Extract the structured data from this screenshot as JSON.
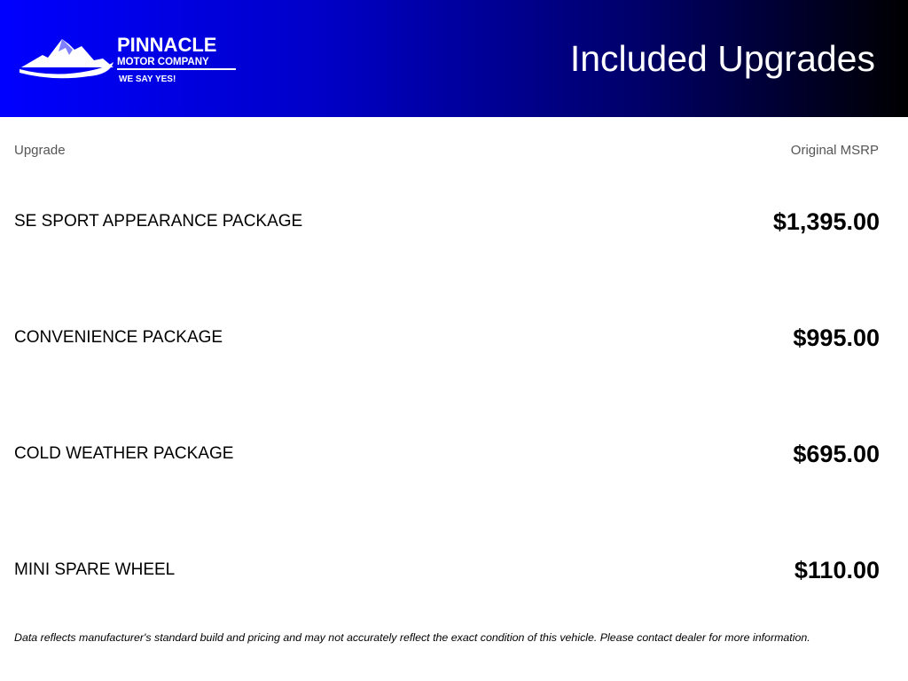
{
  "header": {
    "title": "Included Upgrades",
    "logo": {
      "line1": "PINNACLE",
      "line2": "MOTOR COMPANY",
      "tagline": "WE SAY YES!"
    },
    "gradient_colors": [
      "#0000ff",
      "#000000"
    ]
  },
  "table": {
    "columns": [
      "Upgrade",
      "Original MSRP"
    ],
    "rows": [
      {
        "name": "SE SPORT APPEARANCE PACKAGE",
        "price": "$1,395.00"
      },
      {
        "name": "CONVENIENCE PACKAGE",
        "price": "$995.00"
      },
      {
        "name": "COLD WEATHER PACKAGE",
        "price": "$695.00"
      },
      {
        "name": "MINI SPARE WHEEL",
        "price": "$110.00"
      }
    ]
  },
  "disclaimer": "Data reflects manufacturer's standard build and pricing and may not accurately reflect the exact condition of this vehicle. Please contact dealer for more information."
}
